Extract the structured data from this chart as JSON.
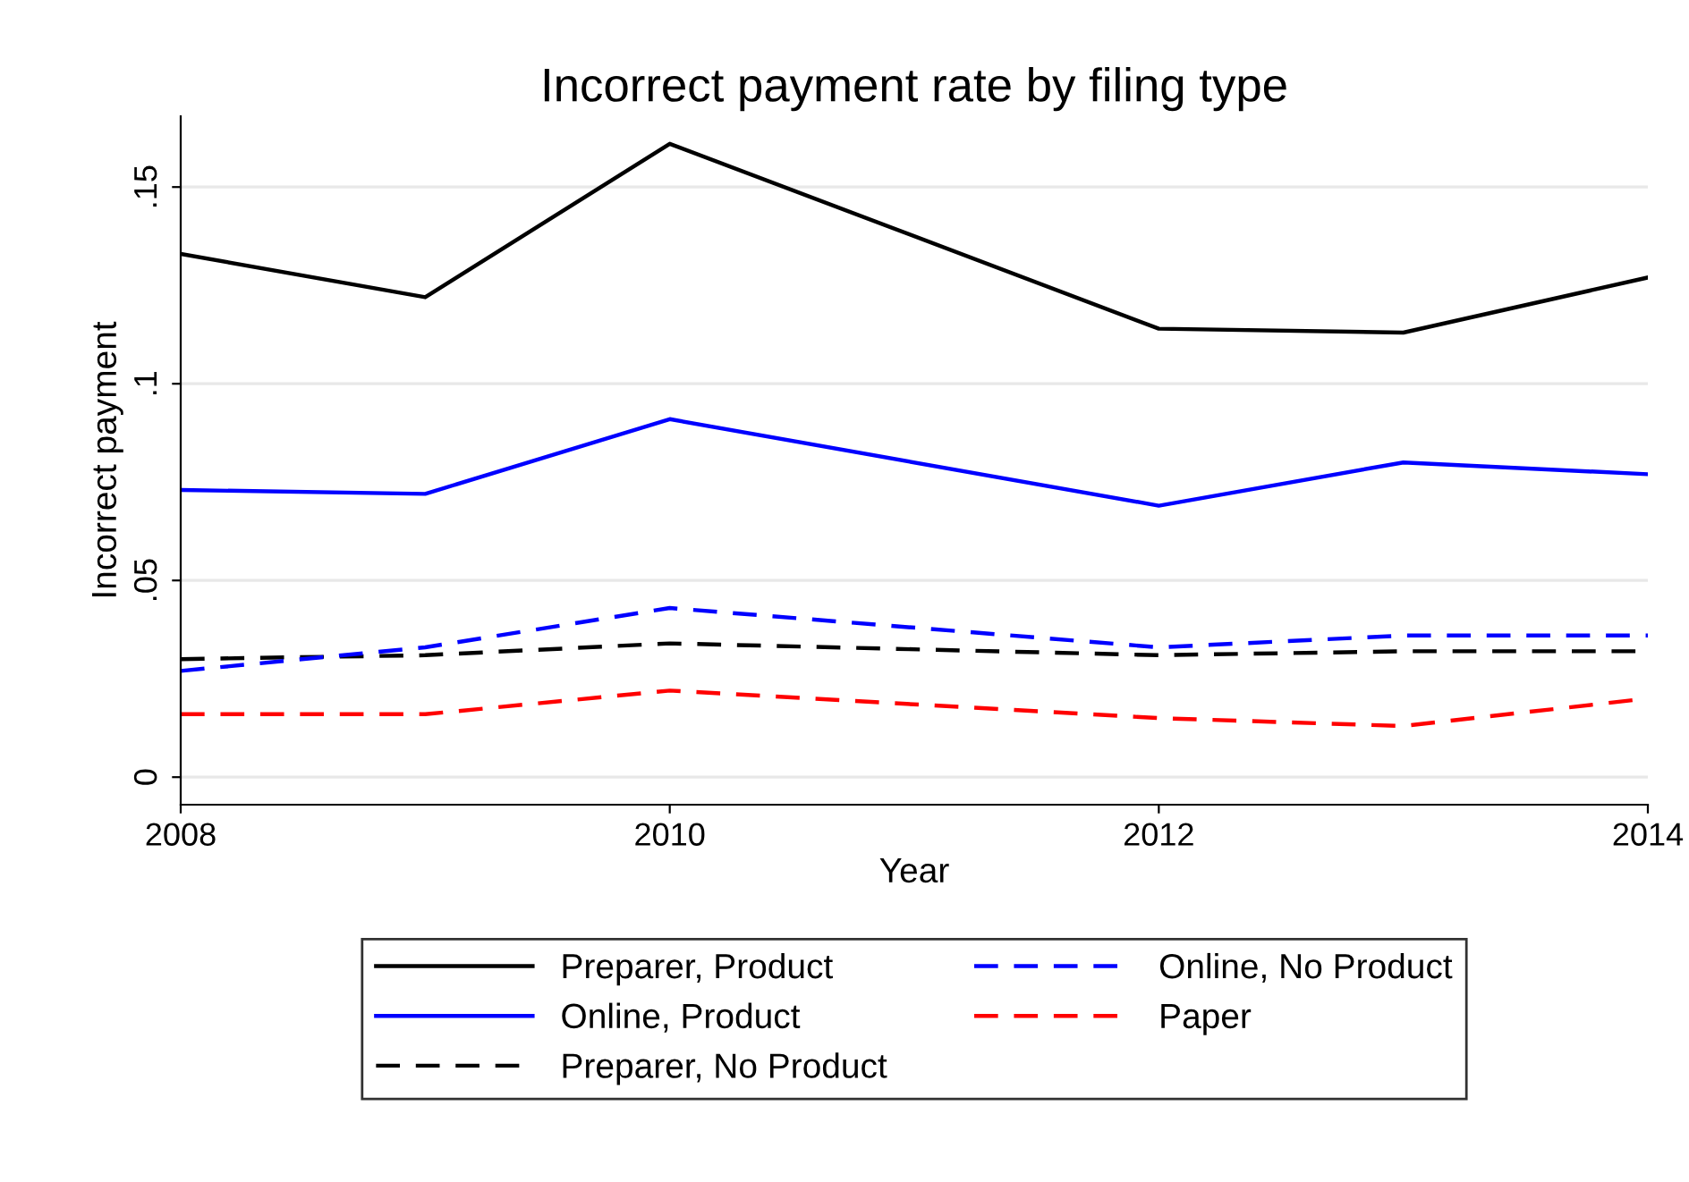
{
  "chart_data": {
    "type": "line",
    "title": "Incorrect payment rate by filing type",
    "xlabel": "Year",
    "ylabel": "Incorrect payment",
    "x": [
      2008,
      2009,
      2010,
      2012,
      2013,
      2014
    ],
    "series": [
      {
        "name": "Preparer, Product",
        "color": "#000000",
        "line_style": "solid",
        "values": [
          0.133,
          0.122,
          0.161,
          0.114,
          0.113,
          0.127
        ]
      },
      {
        "name": "Online, Product",
        "color": "#0000ff",
        "line_style": "solid",
        "values": [
          0.073,
          0.072,
          0.091,
          0.069,
          0.08,
          0.077
        ]
      },
      {
        "name": "Preparer, No Product",
        "color": "#000000",
        "line_style": "dashed",
        "values": [
          0.03,
          0.031,
          0.034,
          0.031,
          0.032,
          0.032
        ]
      },
      {
        "name": "Online, No Product",
        "color": "#0000ff",
        "line_style": "dashed",
        "values": [
          0.027,
          0.033,
          0.043,
          0.033,
          0.036,
          0.036
        ]
      },
      {
        "name": "Paper",
        "color": "#ff0000",
        "line_style": "dashed",
        "values": [
          0.016,
          0.016,
          0.022,
          0.015,
          0.013,
          0.02
        ]
      }
    ],
    "xlim": [
      2008,
      2014
    ],
    "xticks": [
      2008,
      2010,
      2012,
      2014
    ],
    "ylim": [
      -0.007,
      0.168
    ],
    "yticks": [
      {
        "value": 0,
        "label": "0"
      },
      {
        "value": 0.05,
        "label": ".05"
      },
      {
        "value": 0.1,
        "label": ".1"
      },
      {
        "value": 0.15,
        "label": ".15"
      }
    ],
    "grid": "y",
    "legend": "bottom",
    "marker": "none"
  }
}
